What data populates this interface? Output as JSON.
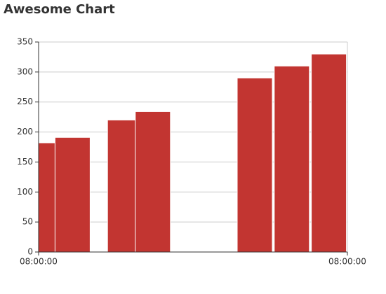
{
  "chart_data": {
    "type": "bar",
    "title": "Awesome Chart",
    "x": [
      0,
      1.1,
      2.8,
      3.7,
      7.0,
      8.2,
      9.4
    ],
    "values": [
      182,
      191,
      220,
      234,
      290,
      310,
      330
    ],
    "color": "#c23531",
    "xlim": [
      0,
      10
    ],
    "xticks": [
      {
        "value": 0,
        "label": "08:00:00"
      },
      {
        "value": 10,
        "label": "08:00:00"
      }
    ],
    "ylim": [
      0,
      350
    ],
    "yticks": [
      0,
      50,
      100,
      150,
      200,
      250,
      300,
      350
    ],
    "grid": true
  }
}
